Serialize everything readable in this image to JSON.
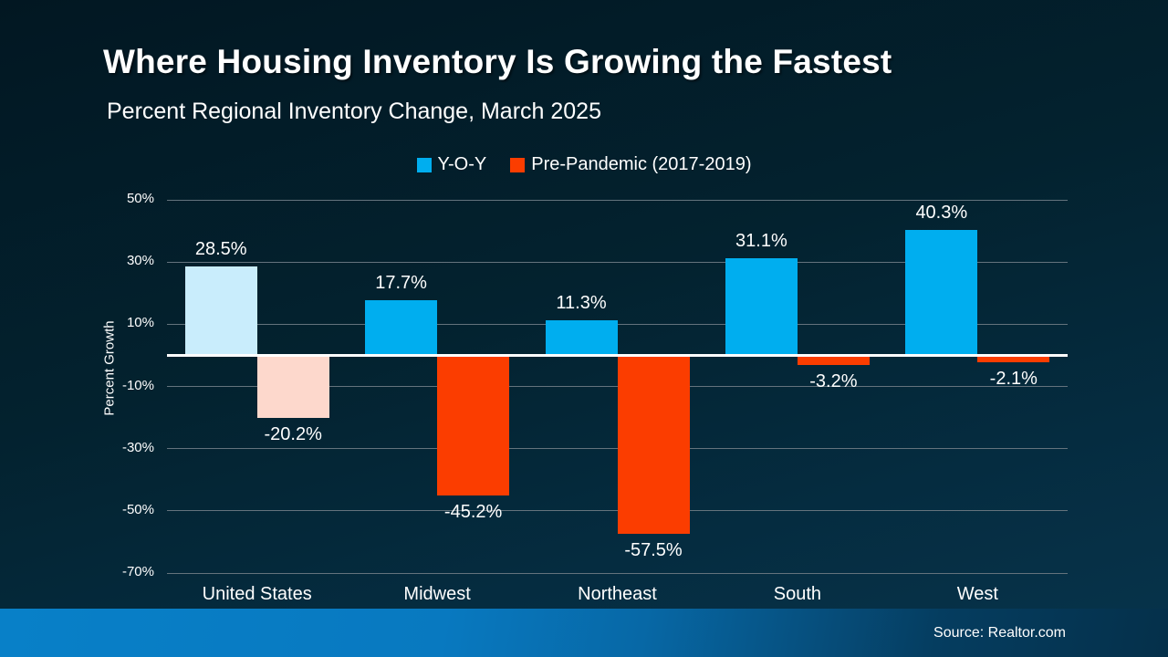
{
  "header": {
    "title": "Where Housing Inventory Is Growing the Fastest",
    "subtitle": "Percent Regional Inventory Change, March 2025"
  },
  "footer": {
    "source": "Source: Realtor.com"
  },
  "chart_data": {
    "type": "bar",
    "title": "Where Housing Inventory Is Growing the Fastest",
    "subtitle": "Percent Regional Inventory Change, March 2025",
    "categories": [
      "United States",
      "Midwest",
      "Northeast",
      "South",
      "West"
    ],
    "series": [
      {
        "name": "Y-O-Y",
        "legend_color": "#00AEEF",
        "values": [
          28.5,
          17.7,
          11.3,
          31.1,
          40.3
        ],
        "labels": [
          "28.5%",
          "17.7%",
          "11.3%",
          "31.1%",
          "40.3%"
        ],
        "bar_colors": [
          "#C9EDFC",
          "#00AEEF",
          "#00AEEF",
          "#00AEEF",
          "#00AEEF"
        ]
      },
      {
        "name": "Pre-Pandemic (2017-2019)",
        "legend_color": "#FB3D00",
        "values": [
          -20.2,
          -45.2,
          -57.5,
          -3.2,
          -2.1
        ],
        "labels": [
          "-20.2%",
          "-45.2%",
          "-57.5%",
          "-3.2%",
          "-2.1%"
        ],
        "bar_colors": [
          "#FDD8CC",
          "#FB3D00",
          "#FB3D00",
          "#FB3D00",
          "#FB3D00"
        ]
      }
    ],
    "xlabel": "",
    "ylabel": "Percent Growth",
    "ylim": [
      -70,
      50
    ],
    "yticks": [
      50,
      30,
      10,
      -10,
      -30,
      -50,
      -70
    ],
    "ytick_labels": [
      "50%",
      "30%",
      "10%",
      "-10%",
      "-30%",
      "-50%",
      "-70%"
    ],
    "grid": true,
    "legend_position": "top"
  },
  "colors": {
    "background_top": "#021722",
    "background_bottom": "#07344C",
    "bar_blue": "#00AEEF",
    "bar_red": "#FB3D00",
    "bar_blue_highlight": "#C9EDFC",
    "bar_red_highlight": "#FDD8CC",
    "gridline": "#64737D",
    "zero_line": "#FFFFFF",
    "footer_left": "#0880C8",
    "footer_right": "#05304A",
    "text": "#FFFFFF"
  }
}
